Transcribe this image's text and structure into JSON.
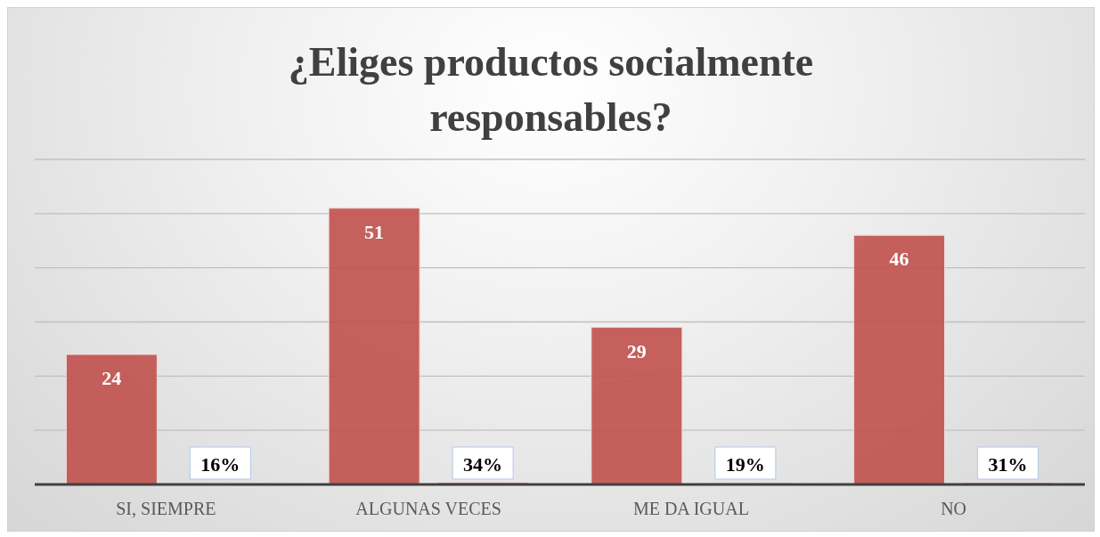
{
  "chart_data": {
    "type": "bar",
    "title": "¿Eliges productos socialmente responsables?",
    "categories": [
      "SI, SIEMPRE",
      "ALGUNAS VECES",
      "ME DA IGUAL",
      "NO"
    ],
    "series": [
      {
        "color": "#c0504d",
        "values": [
          24,
          51,
          29,
          46
        ],
        "value_labels": [
          "24",
          "51",
          "29",
          "46"
        ]
      },
      {
        "color": "#c0504d",
        "values": [
          0.16,
          0.34,
          0.19,
          0.31
        ],
        "value_labels": [
          "16%",
          "34%",
          "19%",
          "31%"
        ]
      }
    ],
    "ylim": [
      0,
      60
    ],
    "yticks": [
      {
        "value": 0,
        "label": null
      },
      {
        "value": 10,
        "label": null
      },
      {
        "value": 20,
        "label": null
      },
      {
        "value": 30,
        "label": null
      },
      {
        "value": 40,
        "label": null
      },
      {
        "value": 50,
        "label": null
      },
      {
        "value": 60,
        "label": null
      }
    ],
    "tick_labels": "x",
    "grid": "y",
    "legend": false
  }
}
